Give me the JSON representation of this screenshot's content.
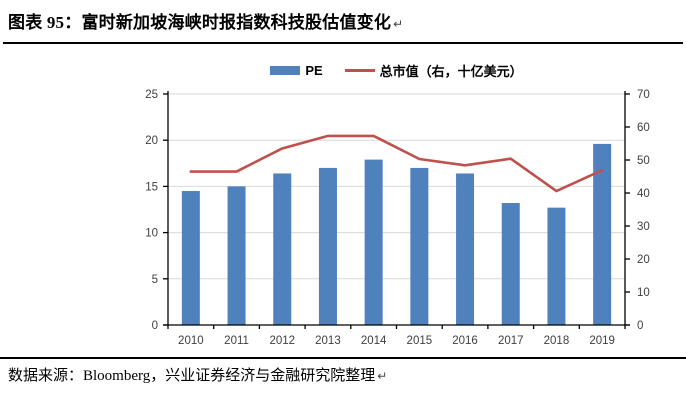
{
  "header": {
    "title": "图表 95：富时新加坡海峡时报指数科技股估值变化",
    "return_mark": "↵"
  },
  "legend": {
    "items": [
      {
        "label": "PE",
        "marker": "bar",
        "color": "#4F81BD"
      },
      {
        "label": "总市值（右，十亿美元）",
        "marker": "line",
        "color": "#C0504D"
      }
    ]
  },
  "footer": {
    "text": "数据来源：Bloomberg，兴业证券经济与金融研究院整理",
    "return_mark": "↵"
  },
  "chart_data": {
    "type": "bar",
    "combo": "bar+line",
    "title": "富时新加坡海峡时报指数科技股估值变化",
    "categories": [
      "2010",
      "2011",
      "2012",
      "2013",
      "2014",
      "2015",
      "2016",
      "2017",
      "2018",
      "2019"
    ],
    "series": [
      {
        "name": "PE",
        "type": "bar",
        "axis": "left",
        "color": "#4F81BD",
        "values": [
          14.5,
          15.0,
          16.4,
          17.0,
          17.9,
          17.0,
          16.4,
          13.2,
          12.7,
          19.6
        ]
      },
      {
        "name": "总市值（右，十亿美元）",
        "type": "line",
        "axis": "right",
        "color": "#C0504D",
        "values": [
          46.5,
          46.5,
          53.5,
          57.3,
          57.3,
          50.3,
          48.4,
          50.4,
          40.6,
          46.9
        ]
      }
    ],
    "left_axis": {
      "min": 0,
      "max": 25,
      "ticks": [
        0,
        5,
        10,
        15,
        20,
        25
      ]
    },
    "right_axis": {
      "min": 0,
      "max": 70,
      "ticks": [
        0,
        10,
        20,
        30,
        40,
        50,
        60,
        70
      ]
    },
    "grid": true,
    "legend_position": "top",
    "colors": {
      "gridline": "#D9D9D9",
      "axis": "#000000",
      "tick_label": "#404040"
    }
  }
}
